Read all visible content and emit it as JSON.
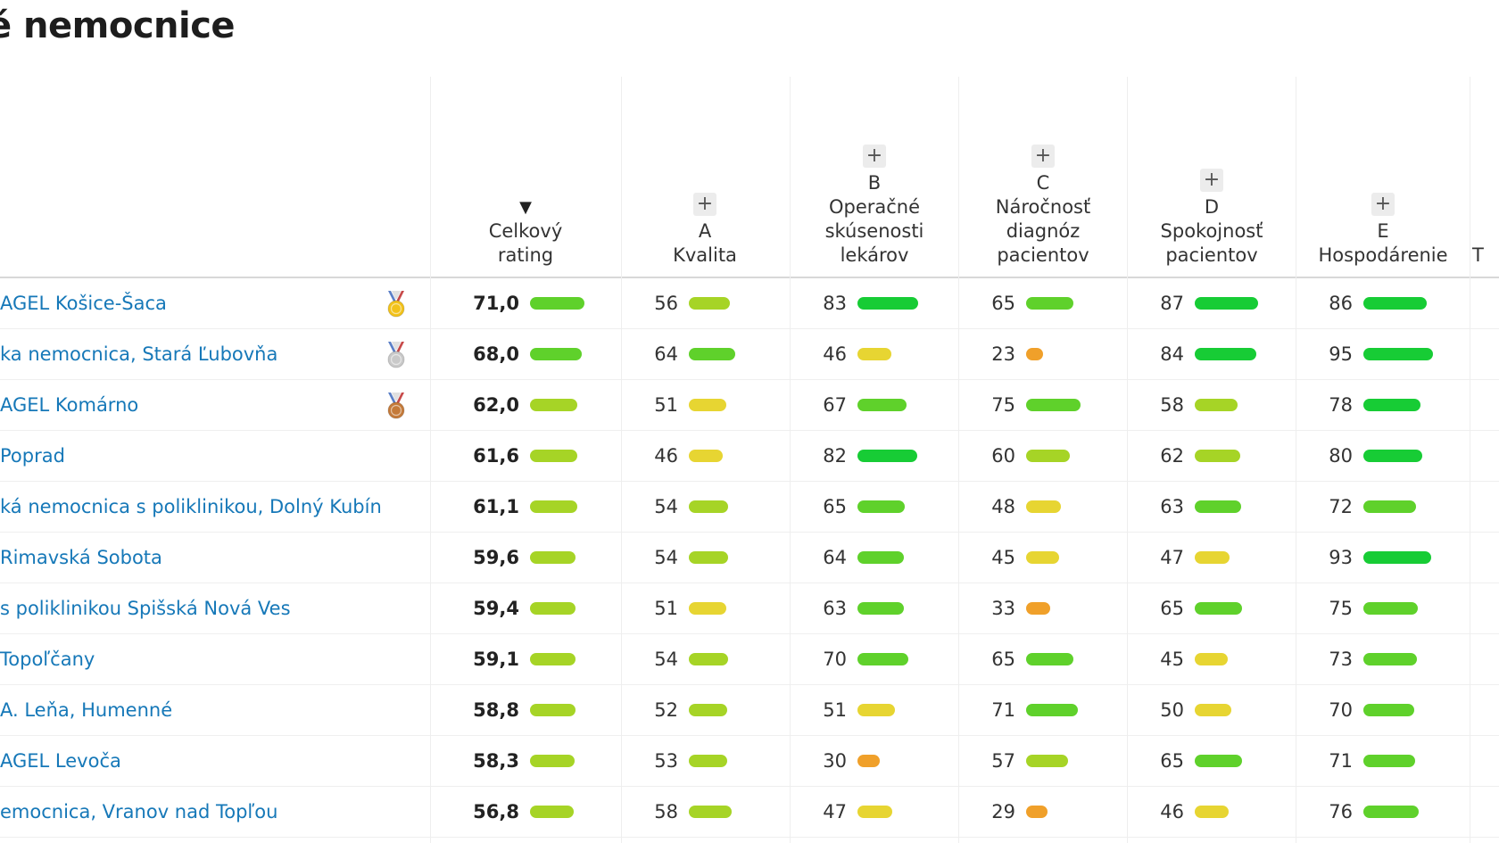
{
  "page": {
    "title": "é nemocnice"
  },
  "columns": [
    {
      "key": "rating",
      "letter": "",
      "label_lines": [
        "Celkový",
        "rating"
      ],
      "has_plus": false,
      "sort_icon": "sort-desc-triangle"
    },
    {
      "key": "a",
      "letter": "A",
      "label_lines": [
        "Kvalita"
      ],
      "has_plus": true
    },
    {
      "key": "b",
      "letter": "B",
      "label_lines": [
        "Operačné",
        "skúsenosti",
        "lekárov"
      ],
      "has_plus": true
    },
    {
      "key": "c",
      "letter": "C",
      "label_lines": [
        "Náročnosť",
        "diagnóz",
        "pacientov"
      ],
      "has_plus": true
    },
    {
      "key": "d",
      "letter": "D",
      "label_lines": [
        "Spokojnosť",
        "pacientov"
      ],
      "has_plus": true
    },
    {
      "key": "e",
      "letter": "E",
      "label_lines": [
        "Hospodárenie"
      ],
      "has_plus": true
    },
    {
      "key": "f",
      "letter": "",
      "label_lines": [
        "T"
      ],
      "has_plus": false
    }
  ],
  "plus_label": "+",
  "sort_symbol": "▼",
  "colors": {
    "green": "#17cc35",
    "green_mid": "#5fd12b",
    "lime": "#a6d426",
    "yellow": "#e7d532",
    "orange": "#f0a02a",
    "link": "#1678b8",
    "gold": "#f2c21a",
    "silver": "#c9c9c9",
    "bronze": "#c47a3a"
  },
  "rows": [
    {
      "name": "AGEL Košice-Šaca",
      "medal": "gold",
      "rating": "71,0",
      "rating_value": 71.0,
      "a": 56,
      "b": 83,
      "c": 65,
      "d": 87,
      "e": 86
    },
    {
      "name": "ka nemocnica, Stará Ľubovňa",
      "medal": "silver",
      "rating": "68,0",
      "rating_value": 68.0,
      "a": 64,
      "b": 46,
      "c": 23,
      "d": 84,
      "e": 95
    },
    {
      "name": "AGEL Komárno",
      "medal": "bronze",
      "rating": "62,0",
      "rating_value": 62.0,
      "a": 51,
      "b": 67,
      "c": 75,
      "d": 58,
      "e": 78
    },
    {
      "name": "Poprad",
      "medal": "",
      "rating": "61,6",
      "rating_value": 61.6,
      "a": 46,
      "b": 82,
      "c": 60,
      "d": 62,
      "e": 80
    },
    {
      "name": "ká nemocnica s poliklinikou, Dolný Kubín",
      "medal": "",
      "rating": "61,1",
      "rating_value": 61.1,
      "a": 54,
      "b": 65,
      "c": 48,
      "d": 63,
      "e": 72
    },
    {
      "name": "Rimavská Sobota",
      "medal": "",
      "rating": "59,6",
      "rating_value": 59.6,
      "a": 54,
      "b": 64,
      "c": 45,
      "d": 47,
      "e": 93
    },
    {
      "name": "s poliklinikou Spišská Nová Ves",
      "medal": "",
      "rating": "59,4",
      "rating_value": 59.4,
      "a": 51,
      "b": 63,
      "c": 33,
      "d": 65,
      "e": 75
    },
    {
      "name": "Topoľčany",
      "medal": "",
      "rating": "59,1",
      "rating_value": 59.1,
      "a": 54,
      "b": 70,
      "c": 65,
      "d": 45,
      "e": 73
    },
    {
      "name": "A. Leňa, Humenné",
      "medal": "",
      "rating": "58,8",
      "rating_value": 58.8,
      "a": 52,
      "b": 51,
      "c": 71,
      "d": 50,
      "e": 70
    },
    {
      "name": "AGEL Levoča",
      "medal": "",
      "rating": "58,3",
      "rating_value": 58.3,
      "a": 53,
      "b": 30,
      "c": 57,
      "d": 65,
      "e": 71
    },
    {
      "name": "emocnica, Vranov nad Topľou",
      "medal": "",
      "rating": "56,8",
      "rating_value": 56.8,
      "a": 58,
      "b": 47,
      "c": 29,
      "d": 46,
      "e": 76
    }
  ]
}
